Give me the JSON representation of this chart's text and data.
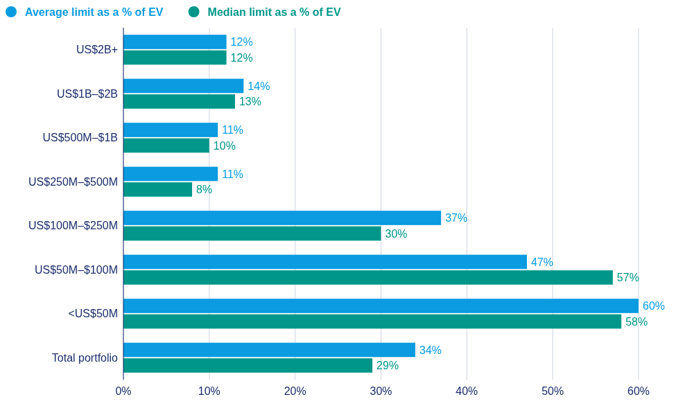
{
  "chart_data": {
    "type": "bar",
    "orientation": "horizontal",
    "categories": [
      "US$2B+",
      "US$1B–$2B",
      "US$500M–$1B",
      "US$250M–$500M",
      "US$100M–$250M",
      "US$50M–$100M",
      "<US$50M",
      "Total portfolio"
    ],
    "series": [
      {
        "name": "Average limit as a % of EV",
        "color": "#0a9be0",
        "values": [
          12,
          14,
          11,
          11,
          37,
          47,
          60,
          34
        ],
        "value_labels": [
          "12%",
          "14%",
          "11%",
          "11%",
          "37%",
          "47%",
          "60%",
          "34%"
        ]
      },
      {
        "name": "Median limit as a % of EV",
        "color": "#00978a",
        "values": [
          12,
          13,
          10,
          8,
          30,
          57,
          58,
          29
        ],
        "value_labels": [
          "12%",
          "13%",
          "10%",
          "8%",
          "30%",
          "57%",
          "58%",
          "29%"
        ]
      }
    ],
    "xlim": [
      0,
      60
    ],
    "xticks": [
      {
        "value": 0,
        "label": "0%"
      },
      {
        "value": 10,
        "label": "10%"
      },
      {
        "value": 20,
        "label": "20%"
      },
      {
        "value": 30,
        "label": "30%"
      },
      {
        "value": 40,
        "label": "40%"
      },
      {
        "value": 50,
        "label": "50%"
      },
      {
        "value": 60,
        "label": "60%"
      }
    ],
    "grid": "x",
    "legend": "top left"
  }
}
